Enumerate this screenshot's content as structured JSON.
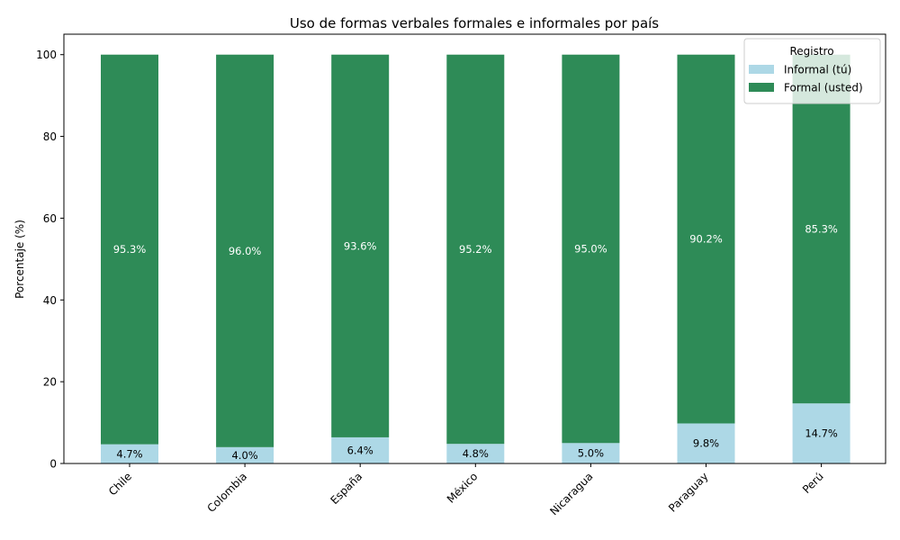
{
  "chart_data": {
    "type": "bar",
    "stacked": true,
    "title": "Uso de formas verbales formales e informales por país",
    "xlabel": "",
    "ylabel": "Porcentaje (%)",
    "ylim": [
      0,
      105
    ],
    "yticks": [
      0,
      20,
      40,
      60,
      80,
      100
    ],
    "categories": [
      "Chile",
      "Colombia",
      "España",
      "México",
      "Nicaragua",
      "Paraguay",
      "Perú"
    ],
    "series": [
      {
        "name": "Informal (tú)",
        "color": "#add8e6",
        "label_color": "#000000",
        "values": [
          4.7,
          4.0,
          6.4,
          4.8,
          5.0,
          9.8,
          14.7
        ],
        "labels": [
          "4.7%",
          "4.0%",
          "6.4%",
          "4.8%",
          "5.0%",
          "9.8%",
          "14.7%"
        ]
      },
      {
        "name": "Formal (usted)",
        "color": "#2e8b57",
        "label_color": "#ffffff",
        "values": [
          95.3,
          96.0,
          93.6,
          95.2,
          95.0,
          90.2,
          85.3
        ],
        "labels": [
          "95.3%",
          "96.0%",
          "93.6%",
          "95.2%",
          "95.0%",
          "90.2%",
          "85.3%"
        ]
      }
    ],
    "legend": {
      "title": "Registro",
      "placement": "top-right"
    },
    "grid": false
  }
}
